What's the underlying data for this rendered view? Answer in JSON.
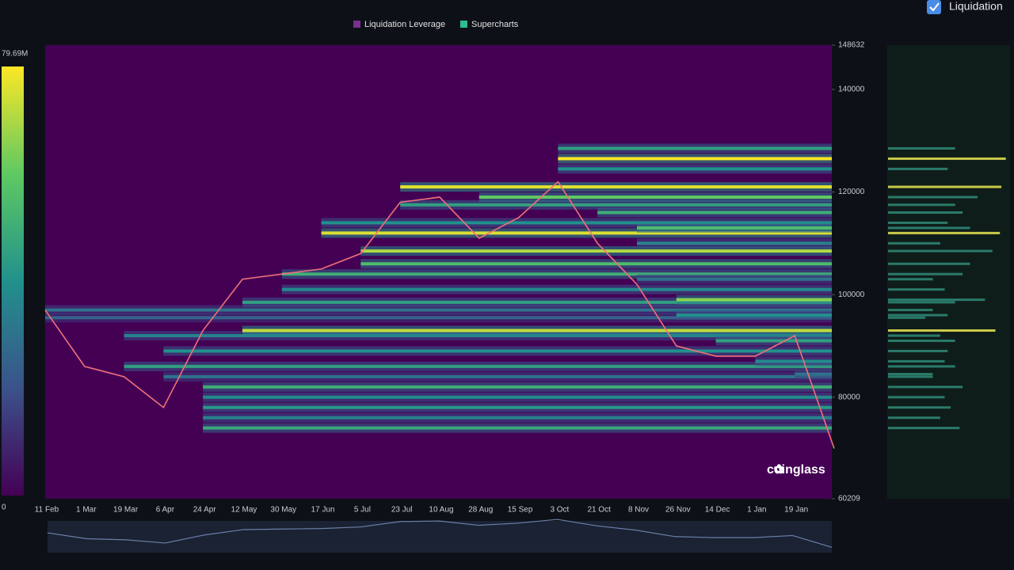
{
  "chart_data": {
    "type": "heatmap",
    "toggle_label": "Liquidation",
    "watermark": "coinglass",
    "series": [
      {
        "name": "Liquidation Leverage",
        "color": "#7b2f8f"
      },
      {
        "name": "Supercharts",
        "color": "#2dbd8f"
      }
    ],
    "categories": [
      "11 Feb",
      "1 Mar",
      "19 Mar",
      "6 Apr",
      "24 Apr",
      "12 May",
      "30 May",
      "17 Jun",
      "5 Jul",
      "23 Jul",
      "10 Aug",
      "28 Aug",
      "15 Sep",
      "3 Oct",
      "21 Oct",
      "8 Nov",
      "26 Nov",
      "14 Dec",
      "1 Jan",
      "19 Jan",
      null
    ],
    "price": [
      97000,
      86000,
      84000,
      78000,
      93000,
      103000,
      104000,
      105000,
      108000,
      118000,
      119000,
      111000,
      115000,
      122000,
      110000,
      102000,
      90000,
      88000,
      88000,
      92000,
      70000
    ],
    "ylim": [
      60209,
      148632
    ],
    "yticks": [
      60209,
      80000,
      100000,
      120000,
      140000,
      148632
    ],
    "colorbar_lim": [
      0,
      79690000
    ],
    "colorbar_ticks": [
      {
        "value": 79690000,
        "label": "79.69M"
      },
      0
    ],
    "levels": [
      {
        "price": 97000,
        "leverage": 30000000,
        "from": 0
      },
      {
        "price": 95500,
        "leverage": 25000000,
        "from": 0
      },
      {
        "price": 92000,
        "leverage": 35000000,
        "from": 2
      },
      {
        "price": 89000,
        "leverage": 40000000,
        "from": 3
      },
      {
        "price": 86000,
        "leverage": 45000000,
        "from": 2
      },
      {
        "price": 84000,
        "leverage": 30000000,
        "from": 3
      },
      {
        "price": 82000,
        "leverage": 50000000,
        "from": 4
      },
      {
        "price": 80000,
        "leverage": 38000000,
        "from": 4
      },
      {
        "price": 78000,
        "leverage": 42000000,
        "from": 4
      },
      {
        "price": 76000,
        "leverage": 35000000,
        "from": 4
      },
      {
        "price": 74000,
        "leverage": 48000000,
        "from": 4
      },
      {
        "price": 93000,
        "leverage": 72000000,
        "from": 5
      },
      {
        "price": 98500,
        "leverage": 45000000,
        "from": 5
      },
      {
        "price": 101000,
        "leverage": 38000000,
        "from": 6
      },
      {
        "price": 104000,
        "leverage": 50000000,
        "from": 6
      },
      {
        "price": 106000,
        "leverage": 55000000,
        "from": 8
      },
      {
        "price": 108500,
        "leverage": 70000000,
        "from": 8
      },
      {
        "price": 112000,
        "leverage": 75000000,
        "from": 7
      },
      {
        "price": 114000,
        "leverage": 40000000,
        "from": 7
      },
      {
        "price": 117500,
        "leverage": 45000000,
        "from": 9
      },
      {
        "price": 121000,
        "leverage": 76000000,
        "from": 9
      },
      {
        "price": 119000,
        "leverage": 60000000,
        "from": 11
      },
      {
        "price": 126500,
        "leverage": 79000000,
        "from": 13
      },
      {
        "price": 128500,
        "leverage": 45000000,
        "from": 13
      },
      {
        "price": 124500,
        "leverage": 40000000,
        "from": 13
      },
      {
        "price": 116000,
        "leverage": 50000000,
        "from": 14
      },
      {
        "price": 113000,
        "leverage": 55000000,
        "from": 15
      },
      {
        "price": 110000,
        "leverage": 35000000,
        "from": 15
      },
      {
        "price": 103000,
        "leverage": 30000000,
        "from": 15
      },
      {
        "price": 99000,
        "leverage": 65000000,
        "from": 16
      },
      {
        "price": 96000,
        "leverage": 40000000,
        "from": 16
      },
      {
        "price": 91000,
        "leverage": 45000000,
        "from": 17
      },
      {
        "price": 87000,
        "leverage": 38000000,
        "from": 18
      },
      {
        "price": 84500,
        "leverage": 30000000,
        "from": 19
      }
    ]
  }
}
